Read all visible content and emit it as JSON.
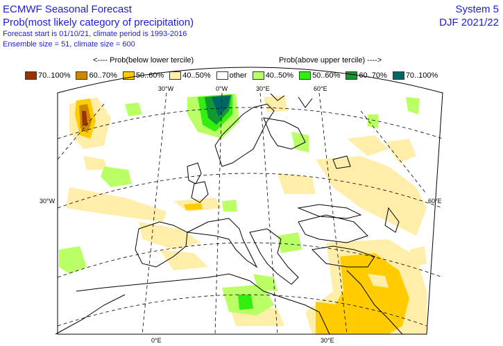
{
  "header": {
    "title": "ECMWF Seasonal Forecast",
    "subtitle": "Prob(most likely category of precipitation)",
    "forecast_info": "Forecast start is 01/10/21, climate period is 1993-2016",
    "ensemble_info": "Ensemble size = 51, climate size = 600",
    "system": "System 5",
    "season": "DJF 2021/22"
  },
  "legend": {
    "below_label": "<---- Prob(below lower tercile)",
    "above_label": "Prob(above upper tercile) ---->",
    "items": [
      {
        "label": "70..100%",
        "color": "#993300"
      },
      {
        "label": "60..70%",
        "color": "#cc8800"
      },
      {
        "label": "50..60%",
        "color": "#ffcc00"
      },
      {
        "label": "40..50%",
        "color": "#ffeeaa"
      },
      {
        "label": "other",
        "color": "#ffffff"
      },
      {
        "label": "40..50%",
        "color": "#bbff66"
      },
      {
        "label": "50..60%",
        "color": "#33ee11"
      },
      {
        "label": "60..70%",
        "color": "#119933"
      },
      {
        "label": "70..100%",
        "color": "#006666"
      }
    ]
  },
  "map": {
    "labels": {
      "top_30w": "30°W",
      "top_0w": "0°W",
      "top_30e": "30°E",
      "top_60e": "60°E",
      "left_30w": "30°W",
      "right_60e": "60°E",
      "bottom_0e": "0°E",
      "bottom_30e": "30°E"
    },
    "colors": {
      "coast": "#000000",
      "grid": "#000000"
    }
  }
}
